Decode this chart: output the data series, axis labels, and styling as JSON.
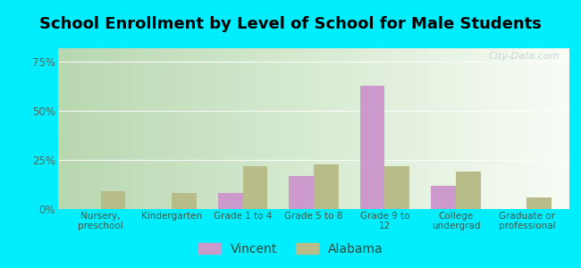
{
  "title": "School Enrollment by Level of School for Male Students",
  "categories": [
    "Nursery,\npreschool",
    "Kindergarten",
    "Grade 1 to 4",
    "Grade 5 to 8",
    "Grade 9 to\n12",
    "College\nundergrad",
    "Graduate or\nprofessional"
  ],
  "vincent_values": [
    0,
    0,
    8,
    17,
    63,
    12,
    0
  ],
  "alabama_values": [
    9,
    8,
    22,
    23,
    22,
    19,
    6
  ],
  "vincent_color": "#cc99cc",
  "alabama_color": "#b8bc88",
  "background_color": "#00eeff",
  "title_fontsize": 13,
  "yticks": [
    0,
    25,
    50,
    75
  ],
  "ylim": [
    0,
    82
  ],
  "legend_labels": [
    "Vincent",
    "Alabama"
  ],
  "bar_width": 0.35,
  "watermark": "City-Data.com",
  "grad_left": "#b8d8b0",
  "grad_right": "#f0f8f0"
}
